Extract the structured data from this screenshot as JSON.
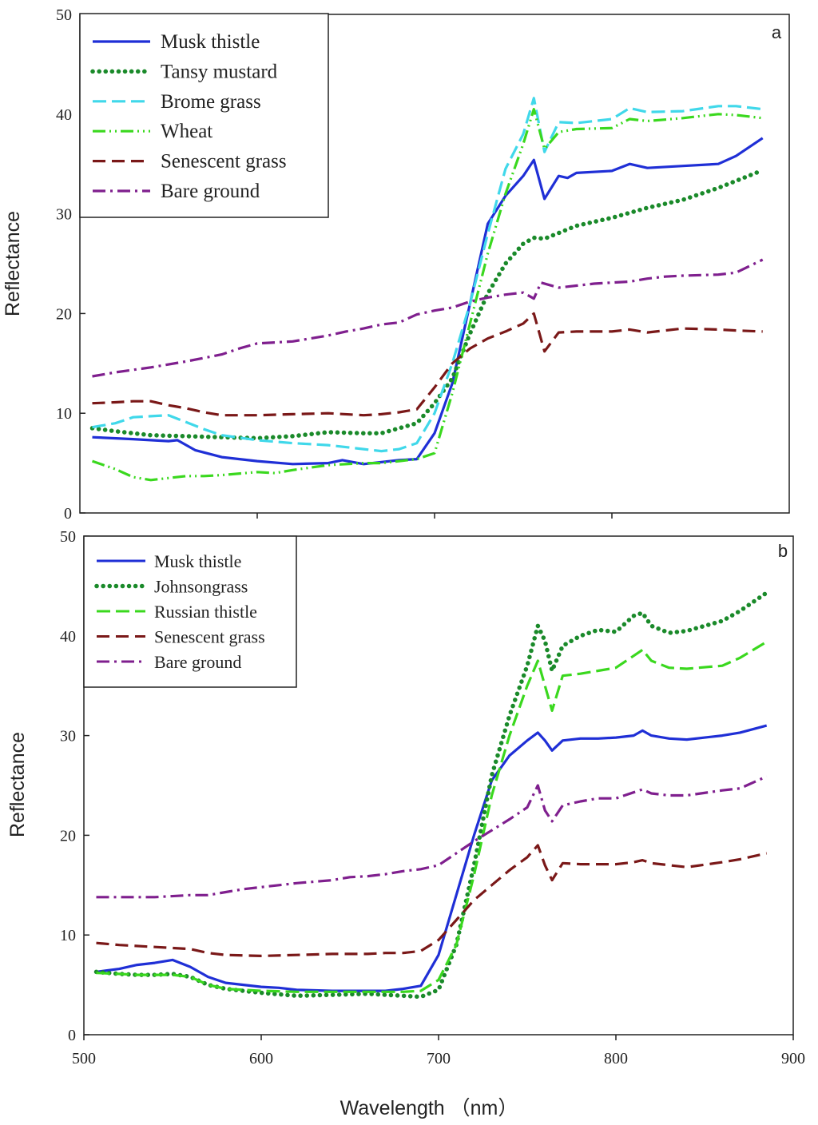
{
  "chart_data": [
    {
      "type": "line",
      "panel_label": "a",
      "xlabel": "",
      "ylabel": "Reflectance",
      "xlim": [
        500,
        900
      ],
      "ylim": [
        0,
        50
      ],
      "y_ticks": [
        "0",
        "10",
        "20",
        "30",
        "40",
        "50"
      ],
      "x_ticks": [
        600,
        700,
        800
      ],
      "legend_position": "top-left",
      "series": [
        {
          "name": "Musk thistle",
          "color": "#1f2fd6",
          "style": "solid",
          "x": [
            507,
            530,
            550,
            555,
            565,
            580,
            600,
            620,
            640,
            648,
            660,
            680,
            690,
            700,
            710,
            720,
            730,
            740,
            750,
            756,
            762,
            770,
            775,
            780,
            800,
            810,
            820,
            840,
            860,
            870,
            885
          ],
          "y": [
            7.6,
            7.4,
            7.2,
            7.3,
            6.3,
            5.6,
            5.2,
            4.9,
            5.0,
            5.3,
            4.9,
            5.3,
            5.4,
            8,
            13,
            21,
            29,
            31.8,
            33.8,
            35.4,
            31.5,
            33.8,
            33.6,
            34.1,
            34.3,
            35,
            34.6,
            34.8,
            35,
            35.8,
            37.6
          ]
        },
        {
          "name": "Tansy mustard",
          "color": "#1a8a2a",
          "style": "dotted",
          "x": [
            507,
            520,
            540,
            560,
            580,
            600,
            620,
            640,
            660,
            670,
            690,
            700,
            710,
            720,
            730,
            740,
            750,
            756,
            762,
            780,
            800,
            820,
            840,
            860,
            870,
            884
          ],
          "y": [
            8.5,
            8.2,
            7.8,
            7.7,
            7.6,
            7.5,
            7.7,
            8.1,
            8.0,
            8.0,
            9.0,
            11,
            13.5,
            18,
            22,
            25,
            27,
            27.6,
            27.5,
            28.8,
            29.6,
            30.6,
            31.4,
            32.6,
            33.3,
            34.3
          ]
        },
        {
          "name": "Brome grass",
          "color": "#40d8ea",
          "style": "dashed",
          "x": [
            507,
            520,
            530,
            540,
            550,
            560,
            570,
            580,
            600,
            620,
            640,
            660,
            670,
            680,
            690,
            700,
            710,
            720,
            730,
            740,
            750,
            756,
            762,
            770,
            780,
            800,
            810,
            820,
            840,
            860,
            870,
            885
          ],
          "y": [
            8.6,
            9.0,
            9.6,
            9.7,
            9.8,
            9.1,
            8.4,
            7.8,
            7.3,
            7.0,
            6.8,
            6.4,
            6.2,
            6.4,
            7.0,
            10,
            15,
            21,
            28,
            34.5,
            38,
            41.6,
            36.2,
            39.2,
            39.1,
            39.5,
            40.6,
            40.2,
            40.3,
            40.8,
            40.8,
            40.5
          ]
        },
        {
          "name": "Wheat",
          "color": "#3ad81e",
          "style": "dashdotdot",
          "x": [
            507,
            520,
            530,
            540,
            550,
            560,
            570,
            580,
            600,
            610,
            620,
            640,
            660,
            670,
            680,
            690,
            700,
            710,
            720,
            730,
            740,
            750,
            756,
            762,
            770,
            780,
            800,
            810,
            820,
            840,
            860,
            870,
            885
          ],
          "y": [
            5.2,
            4.4,
            3.6,
            3.3,
            3.5,
            3.7,
            3.7,
            3.8,
            4.1,
            4.0,
            4.3,
            4.8,
            5.0,
            5.0,
            5.2,
            5.4,
            6,
            12,
            19,
            26,
            32,
            37,
            40.5,
            36.5,
            38.2,
            38.5,
            38.6,
            39.5,
            39.3,
            39.6,
            40.0,
            39.9,
            39.6
          ]
        },
        {
          "name": "Senescent grass",
          "color": "#7a1818",
          "style": "longdash",
          "x": [
            507,
            520,
            530,
            540,
            550,
            560,
            570,
            580,
            600,
            620,
            640,
            660,
            670,
            680,
            690,
            700,
            710,
            720,
            730,
            740,
            750,
            756,
            762,
            770,
            780,
            800,
            810,
            820,
            840,
            860,
            870,
            885
          ],
          "y": [
            11.0,
            11.1,
            11.2,
            11.2,
            10.8,
            10.5,
            10.1,
            9.8,
            9.8,
            9.9,
            10.0,
            9.8,
            9.9,
            10.1,
            10.4,
            12.6,
            15,
            16.5,
            17.5,
            18.2,
            19,
            20,
            16.2,
            18.1,
            18.2,
            18.2,
            18.4,
            18.1,
            18.5,
            18.4,
            18.3,
            18.2
          ]
        },
        {
          "name": "Bare ground",
          "color": "#7f1f8e",
          "style": "dashdot",
          "x": [
            507,
            520,
            540,
            560,
            580,
            590,
            600,
            610,
            620,
            640,
            650,
            660,
            670,
            680,
            690,
            700,
            710,
            720,
            730,
            740,
            750,
            756,
            760,
            770,
            780,
            790,
            800,
            810,
            820,
            830,
            840,
            860,
            870,
            885
          ],
          "y": [
            13.7,
            14.1,
            14.6,
            15.2,
            15.9,
            16.5,
            17.0,
            17.1,
            17.2,
            17.8,
            18.2,
            18.5,
            18.9,
            19.1,
            19.9,
            20.3,
            20.6,
            21.2,
            21.6,
            21.9,
            22.1,
            21.5,
            23.1,
            22.6,
            22.8,
            23.0,
            23.1,
            23.2,
            23.5,
            23.7,
            23.8,
            23.9,
            24.1,
            25.4
          ]
        }
      ]
    },
    {
      "type": "line",
      "panel_label": "b",
      "xlabel": "Wavelength （nm）",
      "ylabel": "Reflectance",
      "xlim": [
        500,
        900
      ],
      "ylim": [
        0,
        50
      ],
      "y_ticks": [
        "0",
        "10",
        "20",
        "30",
        "40",
        "50"
      ],
      "x_ticks": [
        "500",
        "600",
        "700",
        "800",
        "900"
      ],
      "legend_position": "top-left",
      "series": [
        {
          "name": "Musk thistle",
          "color": "#1f2fd6",
          "style": "solid",
          "x": [
            507,
            520,
            530,
            540,
            550,
            560,
            570,
            580,
            590,
            600,
            610,
            620,
            640,
            660,
            670,
            680,
            690,
            700,
            710,
            720,
            730,
            740,
            750,
            756,
            760,
            764,
            770,
            780,
            790,
            800,
            810,
            815,
            820,
            830,
            840,
            860,
            870,
            885
          ],
          "y": [
            6.3,
            6.6,
            7.0,
            7.2,
            7.5,
            6.8,
            5.8,
            5.2,
            5.0,
            4.8,
            4.7,
            4.5,
            4.4,
            4.4,
            4.4,
            4.6,
            4.9,
            8,
            14,
            20,
            25.5,
            28,
            29.5,
            30.3,
            29.5,
            28.5,
            29.5,
            29.7,
            29.7,
            29.8,
            30.0,
            30.5,
            30.0,
            29.7,
            29.6,
            30.0,
            30.3,
            31.0
          ]
        },
        {
          "name": "Johnsongrass",
          "color": "#1a8a2a",
          "style": "dotted",
          "x": [
            507,
            520,
            530,
            540,
            550,
            560,
            570,
            580,
            600,
            620,
            640,
            660,
            670,
            680,
            690,
            700,
            710,
            720,
            730,
            740,
            750,
            756,
            760,
            764,
            770,
            780,
            790,
            800,
            810,
            815,
            820,
            830,
            840,
            860,
            870,
            884
          ],
          "y": [
            6.3,
            6.1,
            6.0,
            6.0,
            6.1,
            5.8,
            5.0,
            4.6,
            4.2,
            3.9,
            4.0,
            4.1,
            4.0,
            3.9,
            3.8,
            4.5,
            9,
            17,
            26,
            32,
            37,
            41,
            39.5,
            36.5,
            39,
            40,
            40.6,
            40.4,
            42,
            42.3,
            41,
            40.3,
            40.5,
            41.5,
            42.5,
            44.2
          ]
        },
        {
          "name": "Russian thistle",
          "color": "#3ad81e",
          "style": "dashed",
          "x": [
            507,
            520,
            530,
            540,
            550,
            560,
            570,
            580,
            600,
            620,
            640,
            660,
            670,
            680,
            690,
            700,
            710,
            720,
            730,
            740,
            750,
            756,
            760,
            764,
            770,
            780,
            790,
            800,
            810,
            815,
            820,
            830,
            840,
            860,
            870,
            885
          ],
          "y": [
            6.2,
            6.1,
            6.0,
            6.0,
            6.0,
            5.8,
            5.0,
            4.6,
            4.4,
            4.3,
            4.3,
            4.3,
            4.3,
            4.3,
            4.4,
            5.5,
            9,
            16,
            24,
            30,
            35,
            37.5,
            35,
            32.5,
            36,
            36.2,
            36.5,
            36.8,
            38,
            38.6,
            37.5,
            36.8,
            36.7,
            37,
            37.8,
            39.4
          ]
        },
        {
          "name": "Senescent grass",
          "color": "#7a1818",
          "style": "longdash",
          "x": [
            507,
            520,
            540,
            560,
            570,
            580,
            600,
            620,
            640,
            660,
            670,
            680,
            690,
            700,
            710,
            720,
            730,
            740,
            750,
            756,
            760,
            764,
            770,
            780,
            800,
            810,
            815,
            820,
            840,
            860,
            870,
            885
          ],
          "y": [
            9.2,
            9.0,
            8.8,
            8.6,
            8.2,
            8.0,
            7.9,
            8.0,
            8.1,
            8.1,
            8.2,
            8.2,
            8.4,
            9.5,
            11.5,
            13.5,
            15,
            16.5,
            17.8,
            19,
            17,
            15.5,
            17.2,
            17.1,
            17.1,
            17.3,
            17.5,
            17.2,
            16.8,
            17.3,
            17.6,
            18.2
          ]
        },
        {
          "name": "Bare ground",
          "color": "#7f1f8e",
          "style": "dashdot",
          "x": [
            507,
            520,
            540,
            560,
            570,
            580,
            590,
            600,
            610,
            620,
            640,
            650,
            660,
            670,
            680,
            690,
            700,
            710,
            720,
            730,
            740,
            750,
            756,
            760,
            764,
            770,
            780,
            790,
            800,
            810,
            815,
            820,
            830,
            840,
            860,
            870,
            885
          ],
          "y": [
            13.8,
            13.8,
            13.8,
            14.0,
            14.0,
            14.3,
            14.6,
            14.8,
            15.0,
            15.2,
            15.5,
            15.8,
            15.9,
            16.1,
            16.4,
            16.6,
            17.0,
            18.2,
            19.4,
            20.5,
            21.6,
            22.8,
            25.0,
            22.5,
            21.4,
            23.0,
            23.4,
            23.7,
            23.7,
            24.3,
            24.6,
            24.2,
            24.0,
            24.0,
            24.5,
            24.7,
            25.9
          ]
        }
      ]
    }
  ]
}
